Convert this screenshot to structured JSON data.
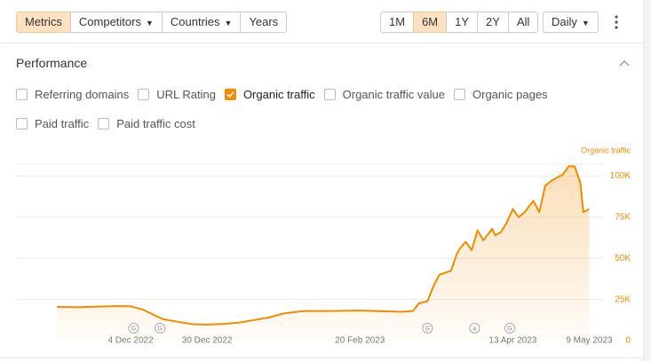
{
  "toolbar": {
    "tabs": [
      "Metrics",
      "Competitors",
      "Countries",
      "Years"
    ],
    "ranges": [
      "1M",
      "6M",
      "1Y",
      "2Y",
      "All"
    ],
    "interval": "Daily"
  },
  "panel": {
    "title": "Performance",
    "options": [
      {
        "label": "Referring domains",
        "checked": false
      },
      {
        "label": "URL Rating",
        "checked": false
      },
      {
        "label": "Organic traffic",
        "checked": true
      },
      {
        "label": "Organic traffic value",
        "checked": false
      },
      {
        "label": "Organic pages",
        "checked": false
      },
      {
        "label": "Paid traffic",
        "checked": false
      },
      {
        "label": "Paid traffic cost",
        "checked": false
      }
    ]
  },
  "chart_data": {
    "type": "area",
    "x": [
      "2022-11-09",
      "2022-11-16",
      "2022-11-23",
      "2022-11-30",
      "2022-12-04",
      "2022-12-08",
      "2022-12-15",
      "2022-12-20",
      "2022-12-25",
      "2022-12-30",
      "2023-01-05",
      "2023-01-10",
      "2023-01-15",
      "2023-01-20",
      "2023-01-25",
      "2023-02-01",
      "2023-02-10",
      "2023-02-20",
      "2023-03-01",
      "2023-03-06",
      "2023-03-10",
      "2023-03-12",
      "2023-03-15",
      "2023-03-17",
      "2023-03-19",
      "2023-03-23",
      "2023-03-25",
      "2023-03-26",
      "2023-03-28",
      "2023-03-30",
      "2023-04-01",
      "2023-04-03",
      "2023-04-06",
      "2023-04-07",
      "2023-04-09",
      "2023-04-11",
      "2023-04-13",
      "2023-04-15",
      "2023-04-17",
      "2023-04-20",
      "2023-04-22",
      "2023-04-24",
      "2023-04-26",
      "2023-04-28",
      "2023-04-30",
      "2023-05-02",
      "2023-05-04",
      "2023-05-06",
      "2023-05-07",
      "2023-05-08",
      "2023-05-09"
    ],
    "series": [
      {
        "name": "Organic traffic",
        "color": "#f08c00",
        "values": [
          20500,
          20300,
          20700,
          21000,
          20800,
          19000,
          13000,
          11500,
          10000,
          9700,
          10200,
          11000,
          12500,
          14000,
          16500,
          18000,
          18000,
          18300,
          17800,
          17500,
          18000,
          22600,
          24000,
          33000,
          40000,
          42500,
          53000,
          56000,
          60000,
          55000,
          67000,
          61000,
          68000,
          64000,
          66000,
          72000,
          80000,
          75000,
          78000,
          85000,
          78000,
          94000,
          97000,
          99000,
          101000,
          106000,
          106000,
          96000,
          78000,
          79000,
          80000
        ]
      }
    ],
    "xlim": [
      "2022-10-26",
      "2023-05-14"
    ],
    "xticks": [
      {
        "value": "2022-12-04",
        "label": "4 Dec 2022"
      },
      {
        "value": "2022-12-30",
        "label": "30 Dec 2022"
      },
      {
        "value": "2023-02-20",
        "label": "20 Feb 2023"
      },
      {
        "value": "2023-04-13",
        "label": "13 Apr 2023"
      },
      {
        "value": "2023-05-09",
        "label": "9 May 2023"
      }
    ],
    "ylim": [
      0,
      110000
    ],
    "yticks": [
      0,
      {
        "value": 25000,
        "label": "25K"
      },
      {
        "value": 50000,
        "label": "50K"
      },
      {
        "value": 75000,
        "label": "75K"
      },
      {
        "value": 100000,
        "label": "100K"
      }
    ],
    "grid": true,
    "annotations": [
      {
        "x": "2022-12-05",
        "label": "G"
      },
      {
        "x": "2022-12-14",
        "label": "G"
      },
      {
        "x": "2023-03-15",
        "label": "G"
      },
      {
        "x": "2023-03-31",
        "label": "a"
      },
      {
        "x": "2023-04-12",
        "label": "G"
      }
    ]
  }
}
